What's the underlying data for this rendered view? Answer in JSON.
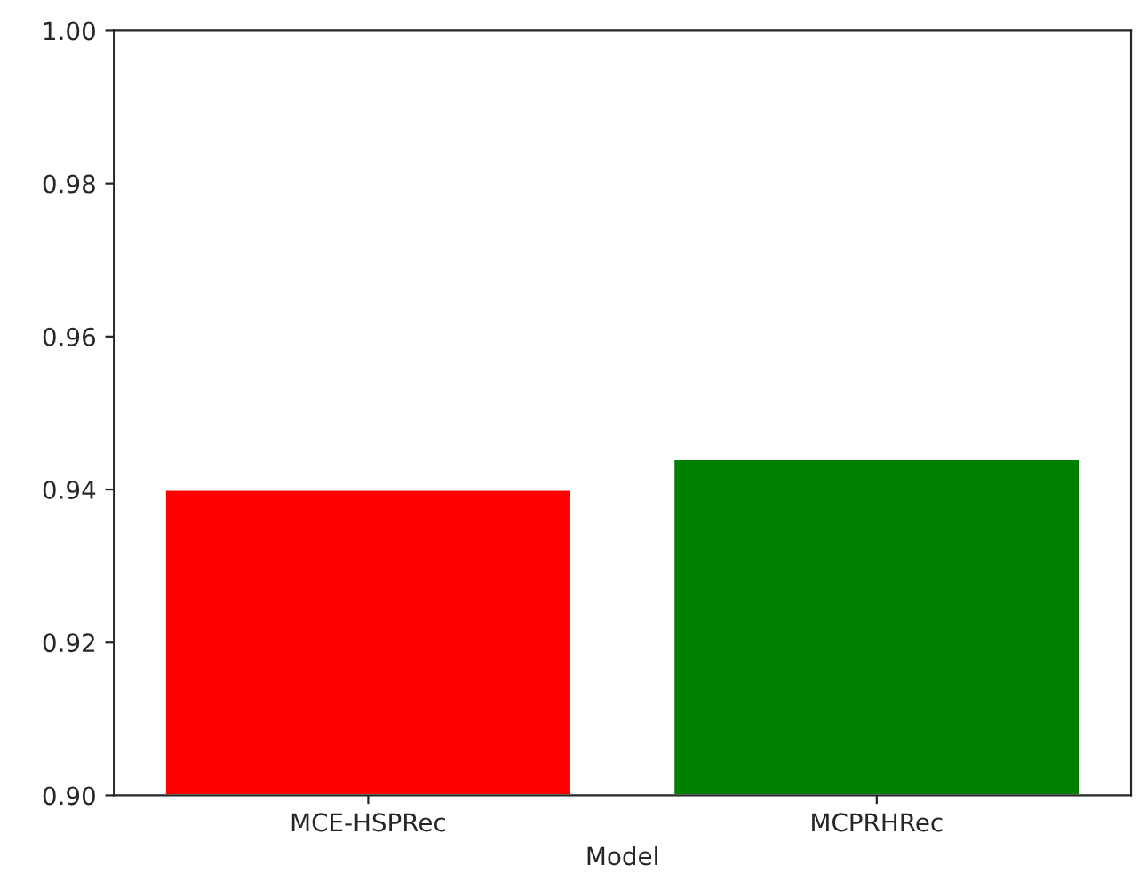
{
  "chart_data": {
    "type": "bar",
    "xlabel": "Model",
    "categories": [
      "MCE-HSPRec",
      "MCPRHRec"
    ],
    "values": [
      0.94,
      0.944
    ],
    "colors": [
      "#ff0000",
      "#008000"
    ],
    "ylim": [
      0.9,
      1.0
    ],
    "yticks": [
      {
        "value": 0.9,
        "label": "0.90"
      },
      {
        "value": 0.92,
        "label": "0.92"
      },
      {
        "value": 0.94,
        "label": "0.94"
      },
      {
        "value": 0.96,
        "label": "0.96"
      },
      {
        "value": 0.98,
        "label": "0.98"
      },
      {
        "value": 1.0,
        "label": "1.00"
      }
    ],
    "grid": false,
    "legend": false
  }
}
